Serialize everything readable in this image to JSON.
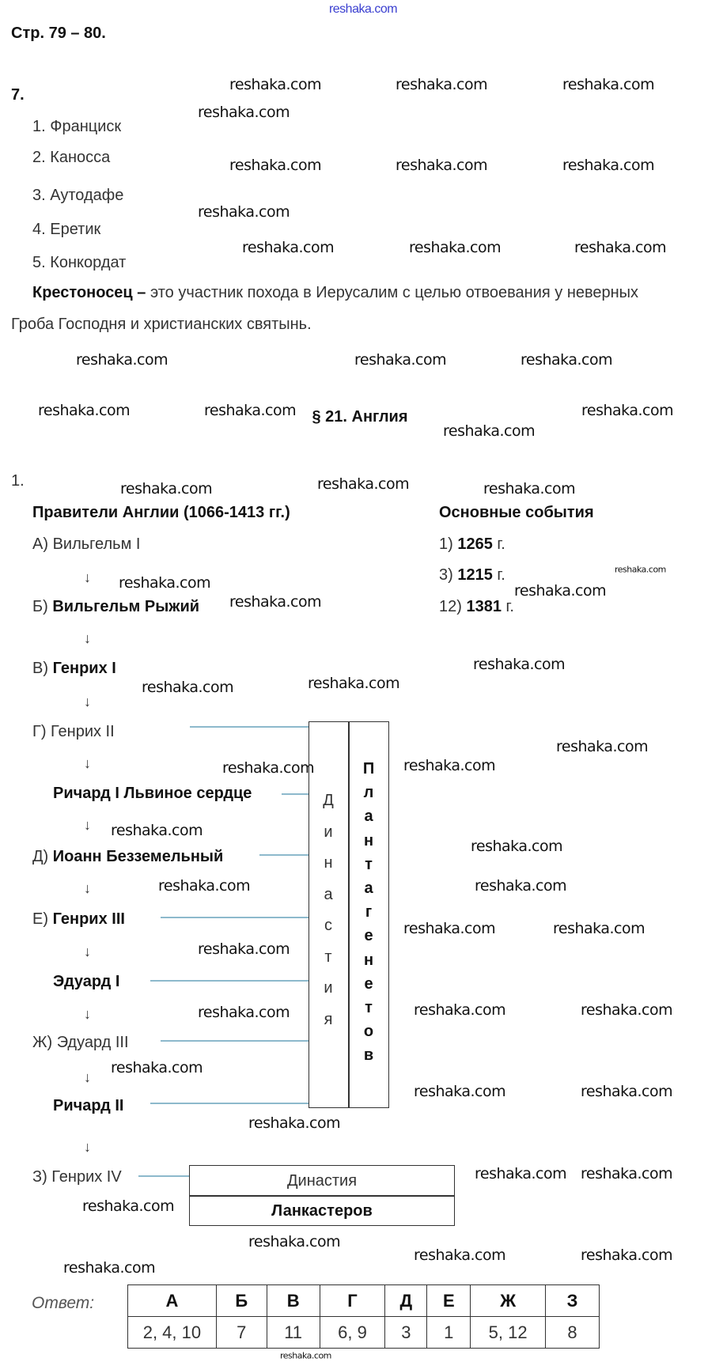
{
  "watermark": "reshaka.com",
  "page_ref": "Стр. 79 – 80.",
  "task7": {
    "number": "7.",
    "items": [
      "1. Франциск",
      "2. Каносса",
      "3. Аутодафе",
      "4. Еретик",
      "5. Конкордат"
    ],
    "definition_term": "Крестоносец –",
    "definition_text_line1": " это участник похода в Иерусалим с целью отвоевания у неверных",
    "definition_text_line2": "Гроба Господня и христианских святынь."
  },
  "section_title": "§ 21. Англия",
  "task1": {
    "number": "1.",
    "rulers_header": "Правители Англии (1066-1413 гг.)",
    "events_header": "Основные события",
    "arrow": "↓",
    "rulers": [
      {
        "prefix": "А) ",
        "name": "Вильгельм I",
        "bold": false
      },
      {
        "prefix": "Б) ",
        "name": "Вильгельм Рыжий",
        "bold": true
      },
      {
        "prefix": "В) ",
        "name": "Генрих I",
        "bold": true
      },
      {
        "prefix": "Г) ",
        "name": "Генрих II",
        "bold": false
      },
      {
        "prefix": "",
        "name": "Ричард I Львиное сердце",
        "bold": true
      },
      {
        "prefix": "Д) ",
        "name": "Иоанн Безземельный",
        "bold": true
      },
      {
        "prefix": "Е) ",
        "name": "Генрих III",
        "bold": true
      },
      {
        "prefix": "",
        "name": "Эдуард I",
        "bold": true
      },
      {
        "prefix": "Ж) ",
        "name": "Эдуард III",
        "bold": false
      },
      {
        "prefix": "",
        "name": "Ричард II",
        "bold": true
      },
      {
        "prefix": "З) ",
        "name": "Генрих IV",
        "bold": false
      }
    ],
    "events": [
      {
        "num": "1) ",
        "year": "1265",
        "suffix": " г."
      },
      {
        "num": "3) ",
        "year": "1215",
        "suffix": " г."
      },
      {
        "num": "12) ",
        "year": "1381",
        "suffix": " г."
      }
    ],
    "plantagenet_box": {
      "word1": "Династия",
      "word2": "Плантагенетов"
    },
    "lancaster_box": {
      "word1": "Династия",
      "word2": "Ланкастеров"
    },
    "line_color": "#8db9cc"
  },
  "answer": {
    "label": "Ответ:",
    "headers": [
      "А",
      "Б",
      "В",
      "Г",
      "Д",
      "Е",
      "Ж",
      "З"
    ],
    "values": [
      "2, 4, 10",
      "7",
      "11",
      "6, 9",
      "3",
      "1",
      "5, 12",
      "8"
    ]
  }
}
